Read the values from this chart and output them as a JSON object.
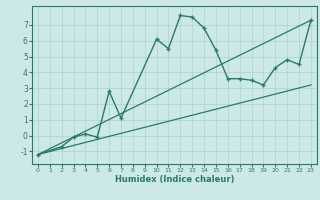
{
  "title": "",
  "xlabel": "Humidex (Indice chaleur)",
  "background_color": "#cce8e8",
  "grid_color": "#b0d4d4",
  "line_color": "#2a7a6a",
  "xlim": [
    -0.5,
    23.5
  ],
  "ylim": [
    -1.8,
    8.2
  ],
  "yticks": [
    -1,
    0,
    1,
    2,
    3,
    4,
    5,
    6,
    7
  ],
  "xticks": [
    0,
    1,
    2,
    3,
    4,
    5,
    6,
    7,
    8,
    9,
    10,
    11,
    12,
    13,
    14,
    15,
    16,
    17,
    18,
    19,
    20,
    21,
    22,
    23
  ],
  "series_x": [
    0,
    2,
    3,
    4,
    5,
    6,
    7,
    10,
    11,
    12,
    13,
    14,
    15,
    16,
    17,
    18,
    19,
    20,
    21,
    22,
    23
  ],
  "series_y": [
    -1.2,
    -0.7,
    -0.1,
    0.1,
    -0.1,
    2.8,
    1.1,
    6.1,
    5.5,
    7.6,
    7.5,
    6.8,
    5.4,
    3.6,
    3.6,
    3.5,
    3.2,
    4.3,
    4.8,
    4.5,
    7.3
  ],
  "line1_x": [
    0,
    23
  ],
  "line1_y": [
    -1.2,
    7.3
  ],
  "line2_x": [
    0,
    23
  ],
  "line2_y": [
    -1.2,
    3.2
  ]
}
